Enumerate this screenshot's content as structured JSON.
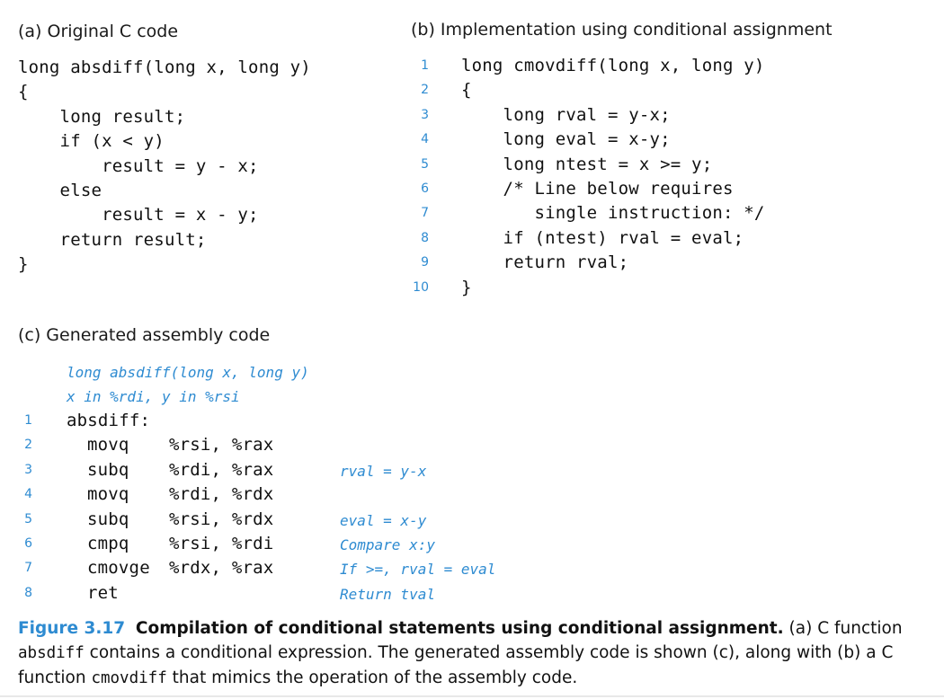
{
  "panel_a": {
    "heading": "(a) Original C code",
    "lines": [
      "long absdiff(long x, long y)",
      "{",
      "    long result;",
      "    if (x < y)",
      "        result = y - x;",
      "    else",
      "        result = x - y;",
      "    return result;",
      "}"
    ]
  },
  "panel_b": {
    "heading": "(b) Implementation using conditional assignment",
    "line_numbers": [
      "1",
      "2",
      "3",
      "4",
      "5",
      "6",
      "7",
      "8",
      "9",
      "10"
    ],
    "lines": [
      "long cmovdiff(long x, long y)",
      "{",
      "    long rval = y-x;",
      "    long eval = x-y;",
      "    long ntest = x >= y;",
      "    /* Line below requires",
      "       single instruction: */",
      "    if (ntest) rval = eval;",
      "    return rval;",
      "}"
    ]
  },
  "panel_c": {
    "heading": "(c) Generated assembly code",
    "header_annotations": [
      "long absdiff(long x, long y)",
      "x in %rdi, y in %rsi"
    ],
    "line_numbers": [
      "1",
      "2",
      "3",
      "4",
      "5",
      "6",
      "7",
      "8"
    ],
    "rows": [
      {
        "label": "absdiff:",
        "op": "",
        "args": "",
        "comment": ""
      },
      {
        "label": "",
        "op": "movq",
        "args": "%rsi, %rax",
        "comment": ""
      },
      {
        "label": "",
        "op": "subq",
        "args": "%rdi, %rax",
        "comment": "rval = y-x"
      },
      {
        "label": "",
        "op": "movq",
        "args": "%rdi, %rdx",
        "comment": ""
      },
      {
        "label": "",
        "op": "subq",
        "args": "%rsi, %rdx",
        "comment": "eval = x-y"
      },
      {
        "label": "",
        "op": "cmpq",
        "args": "%rsi, %rdi",
        "comment": "Compare x:y"
      },
      {
        "label": "",
        "op": "cmovge",
        "args": "%rdx, %rax",
        "comment": "If >=, rval = eval"
      },
      {
        "label": "",
        "op": "ret",
        "args": "",
        "comment": "Return tval"
      }
    ]
  },
  "caption": {
    "figure_label": "Figure 3.17",
    "title": "Compilation of conditional statements using conditional assignment.",
    "text_1": " (a) C function ",
    "code_1": "absdiff",
    "text_2": " contains a conditional expression. The generated assembly code is shown (c), along with (b) a C function ",
    "code_2": "cmovdiff",
    "text_3": " that mimics the operation of the assembly code."
  },
  "colors": {
    "accent": "#2e8bd1",
    "text": "#111111"
  }
}
